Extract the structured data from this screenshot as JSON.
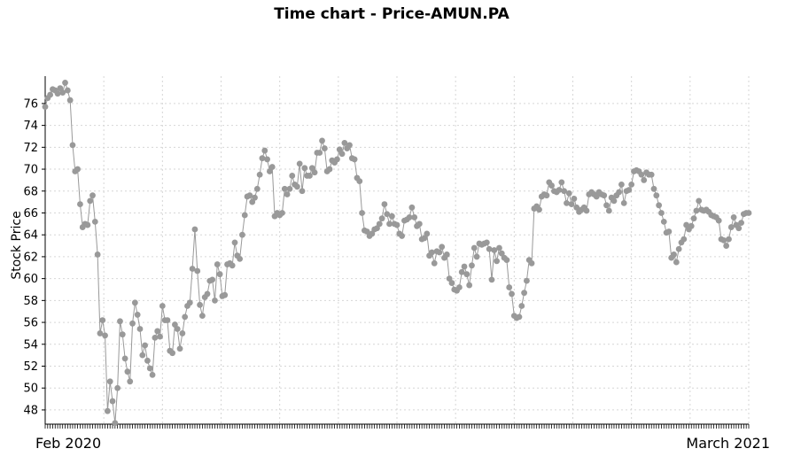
{
  "chart_data": {
    "type": "line",
    "title": "Time chart - Price-AMUN.PA",
    "xlabel": "",
    "ylabel": "Stock Price",
    "x_start_label": "Feb 2020",
    "x_end_label": "March 2021",
    "ylim": [
      46.7,
      78.5
    ],
    "yticks": [
      48,
      50,
      52,
      54,
      56,
      58,
      60,
      62,
      64,
      66,
      68,
      70,
      72,
      74,
      76
    ],
    "grid": true,
    "series": [
      {
        "color": "#999999",
        "values": [
          75.7,
          76.5,
          76.8,
          77.3,
          77.2,
          76.9,
          77.4,
          77.0,
          77.9,
          77.2,
          76.3,
          72.2,
          69.8,
          70.0,
          66.8,
          64.7,
          65.0,
          64.9,
          67.1,
          67.6,
          65.2,
          62.2,
          55.0,
          56.2,
          54.8,
          47.9,
          50.6,
          48.8,
          46.8,
          50.0,
          56.1,
          54.9,
          52.7,
          51.5,
          50.6,
          55.9,
          57.8,
          56.7,
          55.4,
          53.0,
          53.9,
          52.5,
          51.8,
          51.2,
          54.6,
          55.2,
          54.7,
          57.5,
          56.2,
          56.2,
          53.4,
          53.2,
          55.8,
          55.4,
          53.6,
          55.0,
          56.5,
          57.5,
          57.8,
          60.9,
          64.5,
          60.7,
          57.6,
          56.6,
          58.3,
          58.6,
          59.8,
          59.9,
          58.0,
          61.3,
          60.4,
          58.4,
          58.5,
          61.3,
          61.4,
          61.2,
          63.3,
          62.1,
          61.8,
          64.0,
          65.8,
          67.5,
          67.6,
          67.0,
          67.4,
          68.2,
          69.5,
          71.0,
          71.7,
          70.9,
          69.8,
          70.2,
          65.7,
          66.0,
          65.8,
          66.0,
          68.2,
          67.7,
          68.2,
          69.4,
          68.6,
          68.4,
          70.5,
          68.0,
          70.1,
          69.4,
          69.4,
          70.1,
          69.7,
          71.5,
          71.5,
          72.6,
          71.9,
          69.8,
          70.0,
          70.8,
          70.6,
          70.9,
          71.8,
          71.4,
          72.4,
          71.9,
          72.2,
          71.0,
          70.9,
          69.2,
          68.9,
          66.0,
          64.4,
          64.3,
          63.9,
          64.1,
          64.5,
          64.6,
          65.0,
          65.5,
          66.8,
          65.9,
          65.0,
          65.7,
          65.0,
          64.9,
          64.1,
          63.9,
          65.3,
          65.4,
          65.6,
          66.5,
          65.6,
          64.8,
          65.0,
          63.6,
          63.7,
          64.1,
          62.1,
          62.4,
          61.4,
          62.5,
          62.4,
          62.9,
          61.9,
          62.2,
          60.0,
          59.6,
          59.0,
          58.9,
          59.2,
          60.6,
          61.1,
          60.4,
          59.4,
          61.2,
          62.8,
          62.0,
          63.2,
          63.1,
          63.2,
          63.3,
          62.7,
          59.9,
          62.6,
          61.6,
          62.8,
          62.3,
          61.9,
          61.7,
          59.2,
          58.6,
          56.6,
          56.4,
          56.5,
          57.5,
          58.7,
          59.8,
          61.7,
          61.4,
          66.4,
          66.6,
          66.3,
          67.5,
          67.7,
          67.6,
          68.8,
          68.5,
          68.0,
          67.9,
          68.1,
          68.8,
          68.0,
          66.9,
          67.8,
          66.8,
          67.3,
          66.5,
          66.1,
          66.3,
          66.5,
          66.2,
          67.7,
          67.9,
          67.7,
          67.5,
          67.9,
          67.7,
          67.6,
          66.7,
          66.2,
          67.4,
          67.1,
          67.6,
          67.9,
          68.6,
          66.9,
          68.0,
          68.1,
          68.6,
          69.8,
          69.9,
          69.8,
          69.5,
          69.0,
          69.7,
          69.5,
          69.5,
          68.2,
          67.6,
          66.7,
          66.0,
          65.2,
          64.2,
          64.3,
          61.9,
          62.2,
          61.5,
          62.7,
          63.3,
          63.6,
          64.9,
          64.5,
          64.8,
          65.5,
          66.2,
          67.1,
          66.3,
          66.2,
          66.3,
          66.1,
          65.8,
          65.7,
          65.6,
          65.3,
          63.6,
          63.5,
          63.0,
          63.6,
          64.7,
          65.6,
          64.9,
          64.6,
          65.1,
          65.9,
          66.0,
          66.0
        ]
      }
    ]
  }
}
